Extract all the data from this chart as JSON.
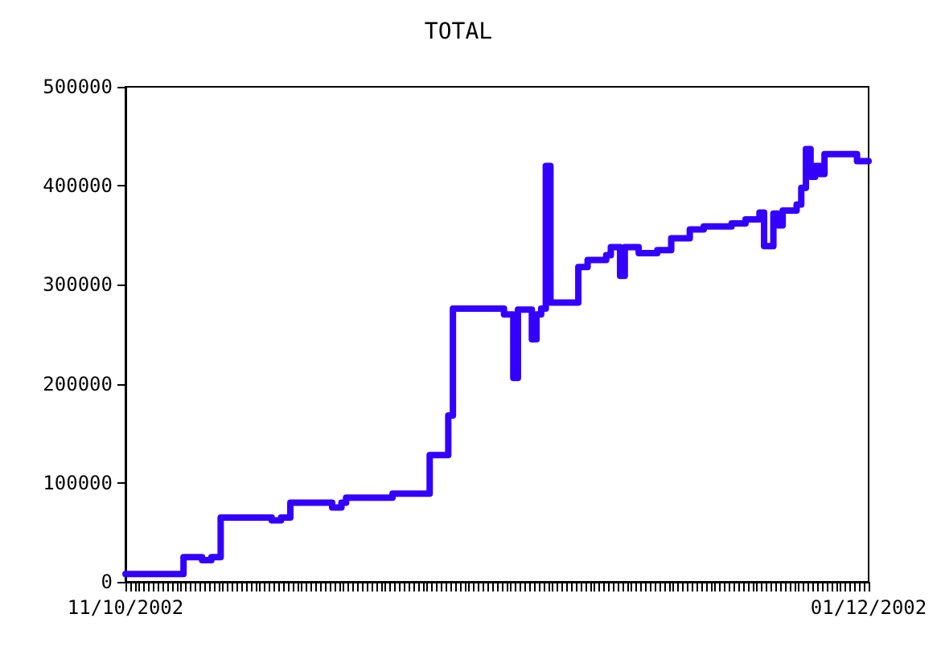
{
  "chart_data": {
    "type": "step",
    "title": "TOTAL",
    "categories": [
      "11/10/2002",
      null,
      null,
      null,
      null,
      null,
      null,
      null,
      null,
      null,
      null,
      null,
      null,
      null,
      null,
      null,
      null,
      null,
      null,
      null,
      null,
      null,
      null,
      null,
      null,
      null,
      null,
      null,
      null,
      null,
      null,
      null,
      null,
      null,
      null,
      null,
      null,
      null,
      null,
      null,
      null,
      null,
      null,
      null,
      null,
      null,
      null,
      null,
      null,
      null,
      null,
      null,
      null,
      null,
      null,
      null,
      null,
      null,
      null,
      null,
      null,
      null,
      null,
      null,
      null,
      null,
      null,
      null,
      null,
      null,
      null,
      null,
      null,
      null,
      null,
      null,
      null,
      null,
      null,
      null,
      null,
      null,
      null,
      null,
      null,
      null,
      null,
      null,
      null,
      null,
      null,
      null,
      null,
      null,
      null,
      null,
      null,
      null,
      null,
      null,
      null,
      null,
      null,
      null,
      null,
      null,
      null,
      null,
      null,
      null,
      null,
      null,
      null,
      null,
      null,
      null,
      null,
      null,
      null,
      null,
      null,
      null,
      null,
      null,
      null,
      null,
      null,
      null,
      null,
      null,
      null,
      null,
      null,
      null,
      null,
      null,
      null,
      null,
      null,
      null,
      null,
      null,
      null,
      null,
      null,
      null,
      null,
      null,
      null,
      null,
      null,
      null,
      null,
      null,
      null,
      null,
      null,
      null,
      null,
      null,
      "01/12/2002"
    ],
    "ylim": [
      0,
      500000
    ],
    "yticks": [
      0,
      100000,
      200000,
      300000,
      400000,
      500000
    ],
    "marker": "none",
    "line_style": "solid",
    "series": [
      {
        "color": "#3300ff",
        "values": [
          8000,
          8000,
          8000,
          8000,
          8000,
          8000,
          8000,
          8000,
          8000,
          8000,
          8000,
          8000,
          8000,
          25000,
          25000,
          25000,
          25000,
          22000,
          22000,
          25000,
          25000,
          65000,
          65000,
          65000,
          65000,
          65000,
          65000,
          65000,
          65000,
          65000,
          65000,
          65000,
          62000,
          62000,
          65000,
          65000,
          80000,
          80000,
          80000,
          80000,
          80000,
          80000,
          80000,
          80000,
          80000,
          75000,
          75000,
          80000,
          85000,
          85000,
          85000,
          85000,
          85000,
          85000,
          85000,
          85000,
          85000,
          85000,
          89000,
          89000,
          89000,
          89000,
          89000,
          89000,
          89000,
          89000,
          128000,
          128000,
          128000,
          128000,
          168000,
          276000,
          276000,
          276000,
          276000,
          276000,
          276000,
          276000,
          276000,
          276000,
          276000,
          276000,
          270000,
          270000,
          206000,
          275000,
          275000,
          275000,
          245000,
          270000,
          276000,
          420000,
          282000,
          282000,
          282000,
          282000,
          282000,
          282000,
          318000,
          318000,
          325000,
          325000,
          325000,
          325000,
          330000,
          338000,
          338000,
          309000,
          338000,
          338000,
          338000,
          332000,
          332000,
          332000,
          332000,
          335000,
          335000,
          335000,
          347000,
          347000,
          347000,
          347000,
          356000,
          356000,
          356000,
          359000,
          359000,
          359000,
          359000,
          359000,
          359000,
          362000,
          362000,
          362000,
          366000,
          366000,
          366000,
          373000,
          339000,
          339000,
          372000,
          360000,
          375000,
          375000,
          375000,
          381000,
          398000,
          437000,
          409000,
          420000,
          412000,
          432000,
          432000,
          432000,
          432000,
          432000,
          432000,
          432000,
          425000,
          425000,
          425000
        ]
      }
    ]
  }
}
